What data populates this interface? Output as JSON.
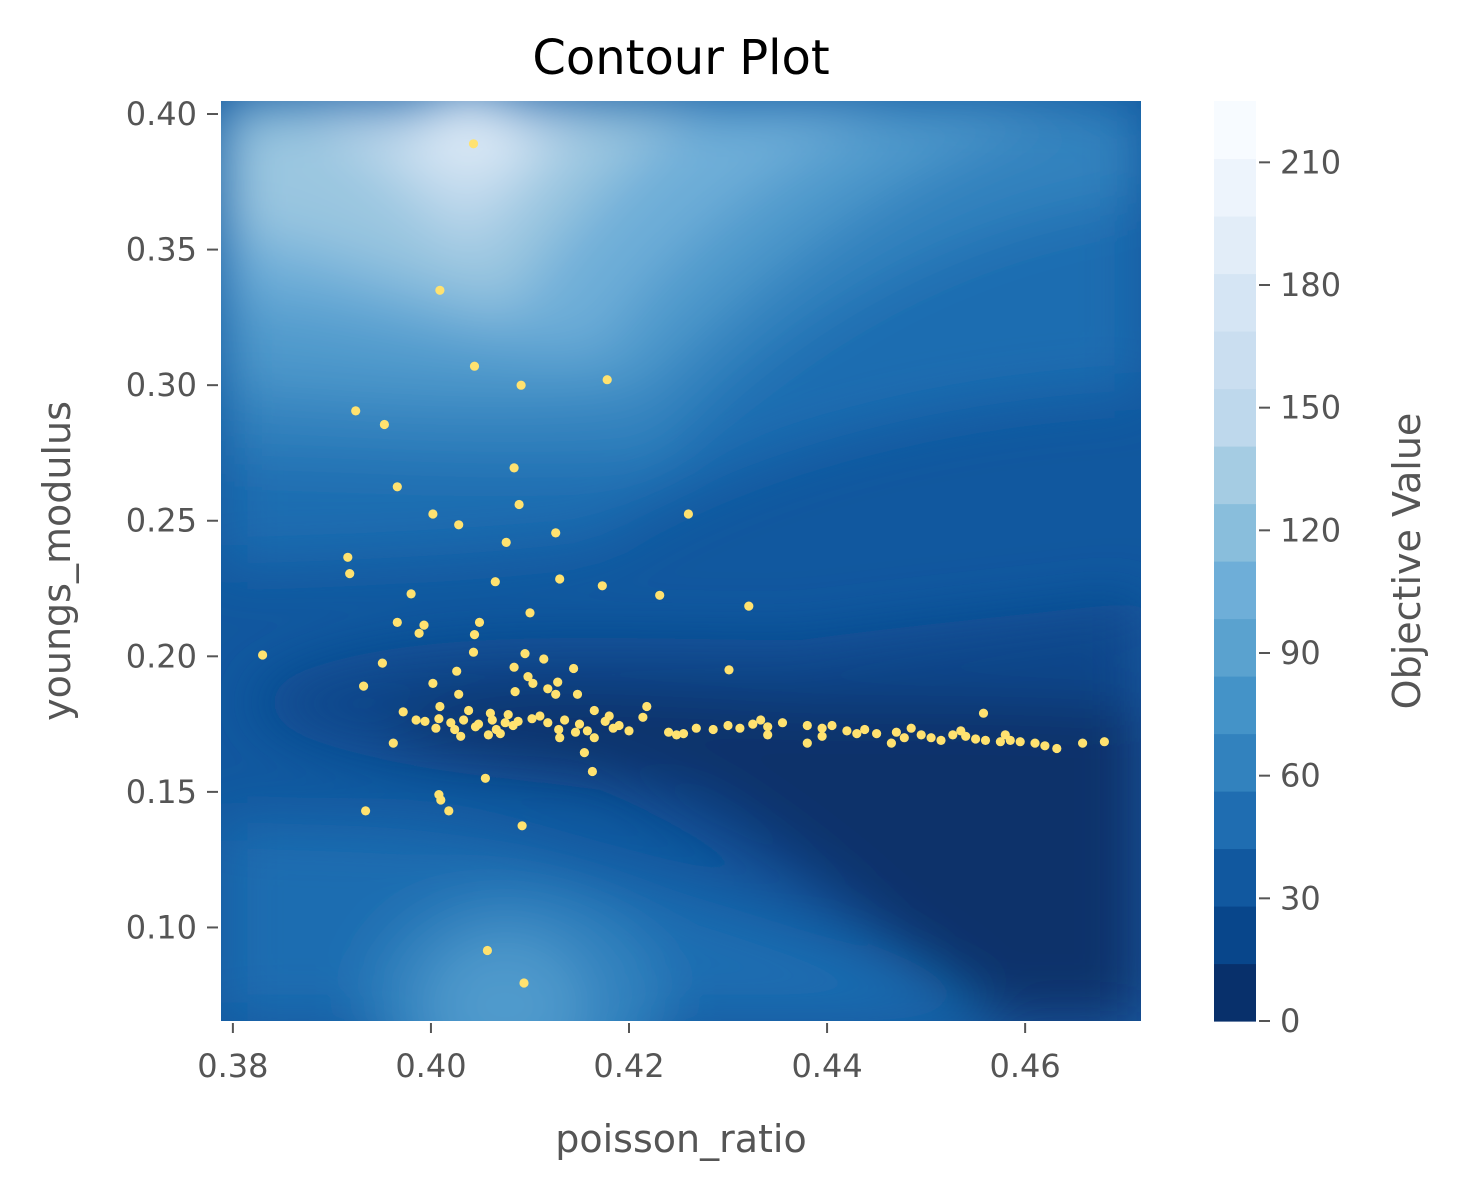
{
  "chart_data": {
    "type": "scatter",
    "title": "Contour Plot",
    "xlabel": "poisson_ratio",
    "ylabel": "youngs_modulus",
    "colorbar_label": "Objective Value",
    "xlim": [
      0.3788,
      0.4717
    ],
    "ylim": [
      0.0655,
      0.4048
    ],
    "x_ticks": [
      0.38,
      0.4,
      0.42,
      0.44,
      0.46
    ],
    "x_tick_labels": [
      "0.38",
      "0.40",
      "0.42",
      "0.44",
      "0.46"
    ],
    "y_ticks": [
      0.1,
      0.15,
      0.2,
      0.25,
      0.3,
      0.35,
      0.4
    ],
    "y_tick_labels": [
      "0.10",
      "0.15",
      "0.20",
      "0.25",
      "0.30",
      "0.35",
      "0.40"
    ],
    "colorbar_range": [
      0,
      225
    ],
    "colorbar_ticks": [
      0,
      30,
      60,
      90,
      120,
      150,
      180,
      210
    ],
    "colorbar_tick_labels": [
      "0",
      "30",
      "60",
      "90",
      "120",
      "150",
      "180",
      "210"
    ],
    "colormap": [
      "#08306b",
      "#08468b",
      "#11589f",
      "#1f6db1",
      "#3282be",
      "#4493c8",
      "#5aa2cf",
      "#6eaed8",
      "#89bedc",
      "#a5cce3",
      "#bed8ec",
      "#cadef0",
      "#d5e5f4",
      "#e2edf8",
      "#edf4fc",
      "#f7fbff"
    ],
    "marker_color": "#ffe270",
    "contour_description": "filled contour: lowest values along y≈0.17–0.18 for x>0.40 (right side), high values near top (peak ≈ x 0.404, y 0.39) and a secondary bump near bottom (x ≈ 0.408, y ≈ 0.08)",
    "points": [
      [
        0.383,
        0.2005
      ],
      [
        0.4043,
        0.389
      ],
      [
        0.4009,
        0.335
      ],
      [
        0.4044,
        0.307
      ],
      [
        0.4091,
        0.3
      ],
      [
        0.4178,
        0.302
      ],
      [
        0.3924,
        0.2905
      ],
      [
        0.3953,
        0.2855
      ],
      [
        0.4084,
        0.2695
      ],
      [
        0.3966,
        0.2625
      ],
      [
        0.4089,
        0.256
      ],
      [
        0.4002,
        0.2525
      ],
      [
        0.4028,
        0.2485
      ],
      [
        0.4126,
        0.2455
      ],
      [
        0.4076,
        0.242
      ],
      [
        0.426,
        0.2525
      ],
      [
        0.3916,
        0.2365
      ],
      [
        0.3918,
        0.2305
      ],
      [
        0.4065,
        0.2275
      ],
      [
        0.413,
        0.2285
      ],
      [
        0.4173,
        0.226
      ],
      [
        0.4231,
        0.2225
      ],
      [
        0.4321,
        0.2185
      ],
      [
        0.398,
        0.223
      ],
      [
        0.41,
        0.216
      ],
      [
        0.3966,
        0.2125
      ],
      [
        0.3993,
        0.2115
      ],
      [
        0.3988,
        0.2085
      ],
      [
        0.4049,
        0.2125
      ],
      [
        0.4044,
        0.208
      ],
      [
        0.4043,
        0.2015
      ],
      [
        0.4095,
        0.201
      ],
      [
        0.3951,
        0.1975
      ],
      [
        0.4114,
        0.199
      ],
      [
        0.4026,
        0.1945
      ],
      [
        0.4084,
        0.196
      ],
      [
        0.4144,
        0.1955
      ],
      [
        0.4301,
        0.195
      ],
      [
        0.4098,
        0.1925
      ],
      [
        0.4103,
        0.19
      ],
      [
        0.4128,
        0.1905
      ],
      [
        0.4118,
        0.188
      ],
      [
        0.4126,
        0.186
      ],
      [
        0.3932,
        0.189
      ],
      [
        0.4002,
        0.19
      ],
      [
        0.4085,
        0.187
      ],
      [
        0.4028,
        0.186
      ],
      [
        0.4148,
        0.186
      ],
      [
        0.4218,
        0.1815
      ],
      [
        0.3972,
        0.1795
      ],
      [
        0.4009,
        0.1815
      ],
      [
        0.4038,
        0.18
      ],
      [
        0.406,
        0.179
      ],
      [
        0.4078,
        0.1785
      ],
      [
        0.411,
        0.178
      ],
      [
        0.4165,
        0.18
      ],
      [
        0.418,
        0.178
      ],
      [
        0.4214,
        0.1775
      ],
      [
        0.3985,
        0.1765
      ],
      [
        0.3994,
        0.176
      ],
      [
        0.4008,
        0.177
      ],
      [
        0.402,
        0.1755
      ],
      [
        0.4033,
        0.1765
      ],
      [
        0.4048,
        0.175
      ],
      [
        0.4062,
        0.1765
      ],
      [
        0.4075,
        0.1755
      ],
      [
        0.4088,
        0.176
      ],
      [
        0.4102,
        0.177
      ],
      [
        0.4118,
        0.1755
      ],
      [
        0.4135,
        0.1765
      ],
      [
        0.415,
        0.175
      ],
      [
        0.4176,
        0.176
      ],
      [
        0.419,
        0.1745
      ],
      [
        0.4005,
        0.1735
      ],
      [
        0.4024,
        0.173
      ],
      [
        0.4045,
        0.174
      ],
      [
        0.4066,
        0.173
      ],
      [
        0.4083,
        0.1745
      ],
      [
        0.4129,
        0.173
      ],
      [
        0.4158,
        0.1725
      ],
      [
        0.4184,
        0.1735
      ],
      [
        0.42,
        0.1725
      ],
      [
        0.403,
        0.1705
      ],
      [
        0.4058,
        0.171
      ],
      [
        0.407,
        0.1715
      ],
      [
        0.4146,
        0.172
      ],
      [
        0.4165,
        0.17
      ],
      [
        0.424,
        0.172
      ],
      [
        0.4248,
        0.171
      ],
      [
        0.4255,
        0.1715
      ],
      [
        0.4268,
        0.1735
      ],
      [
        0.4285,
        0.173
      ],
      [
        0.43,
        0.1745
      ],
      [
        0.4312,
        0.1735
      ],
      [
        0.4325,
        0.175
      ],
      [
        0.434,
        0.174
      ],
      [
        0.4355,
        0.1755
      ],
      [
        0.4333,
        0.1765
      ],
      [
        0.434,
        0.171
      ],
      [
        0.438,
        0.1745
      ],
      [
        0.4395,
        0.1735
      ],
      [
        0.4405,
        0.1745
      ],
      [
        0.442,
        0.1725
      ],
      [
        0.4438,
        0.173
      ],
      [
        0.4395,
        0.1705
      ],
      [
        0.438,
        0.168
      ],
      [
        0.443,
        0.1715
      ],
      [
        0.445,
        0.1715
      ],
      [
        0.447,
        0.172
      ],
      [
        0.4478,
        0.17
      ],
      [
        0.4485,
        0.1735
      ],
      [
        0.4465,
        0.168
      ],
      [
        0.4495,
        0.171
      ],
      [
        0.4505,
        0.17
      ],
      [
        0.4515,
        0.169
      ],
      [
        0.4527,
        0.171
      ],
      [
        0.454,
        0.1705
      ],
      [
        0.455,
        0.1695
      ],
      [
        0.456,
        0.169
      ],
      [
        0.4575,
        0.1685
      ],
      [
        0.4585,
        0.169
      ],
      [
        0.4595,
        0.1685
      ],
      [
        0.461,
        0.168
      ],
      [
        0.4558,
        0.179
      ],
      [
        0.4535,
        0.1725
      ],
      [
        0.458,
        0.171
      ],
      [
        0.462,
        0.167
      ],
      [
        0.4632,
        0.166
      ],
      [
        0.4658,
        0.168
      ],
      [
        0.468,
        0.1685
      ],
      [
        0.3962,
        0.168
      ],
      [
        0.413,
        0.17
      ],
      [
        0.4155,
        0.1645
      ],
      [
        0.4163,
        0.1575
      ],
      [
        0.4055,
        0.155
      ],
      [
        0.4008,
        0.149
      ],
      [
        0.401,
        0.147
      ],
      [
        0.4018,
        0.143
      ],
      [
        0.3934,
        0.143
      ],
      [
        0.4092,
        0.1375
      ],
      [
        0.4057,
        0.0915
      ],
      [
        0.4094,
        0.0795
      ]
    ]
  }
}
